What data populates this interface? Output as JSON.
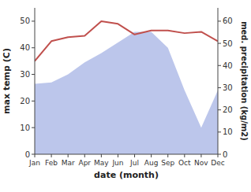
{
  "chart_data": {
    "type": "line",
    "x_label": "date (month)",
    "y_label": "max temp (C)",
    "y2_label": "med. precipitation (kg/m2)",
    "categories": [
      "Jan",
      "Feb",
      "Mar",
      "Apr",
      "May",
      "Jun",
      "Jul",
      "Aug",
      "Sep",
      "Oct",
      "Nov",
      "Dec"
    ],
    "series": [
      {
        "type": "area",
        "color": "#b0bce8",
        "values": [
          26.5,
          27.0,
          30.0,
          34.5,
          38.0,
          42.0,
          46.0,
          46.0,
          40.0,
          24.0,
          10.0,
          24.0
        ]
      },
      {
        "type": "line",
        "color": "#c0504d",
        "values": [
          35.0,
          42.5,
          44.0,
          44.5,
          50.0,
          49.0,
          45.0,
          46.5,
          46.5,
          45.5,
          46.0,
          42.5
        ]
      }
    ],
    "ylim": [
      0,
      55
    ],
    "yticks": [
      0,
      10,
      20,
      30,
      40,
      50
    ],
    "y2lim": [
      0,
      66
    ],
    "y2ticks": [
      0,
      10,
      20,
      30,
      40,
      50,
      60
    ],
    "grid": false
  }
}
